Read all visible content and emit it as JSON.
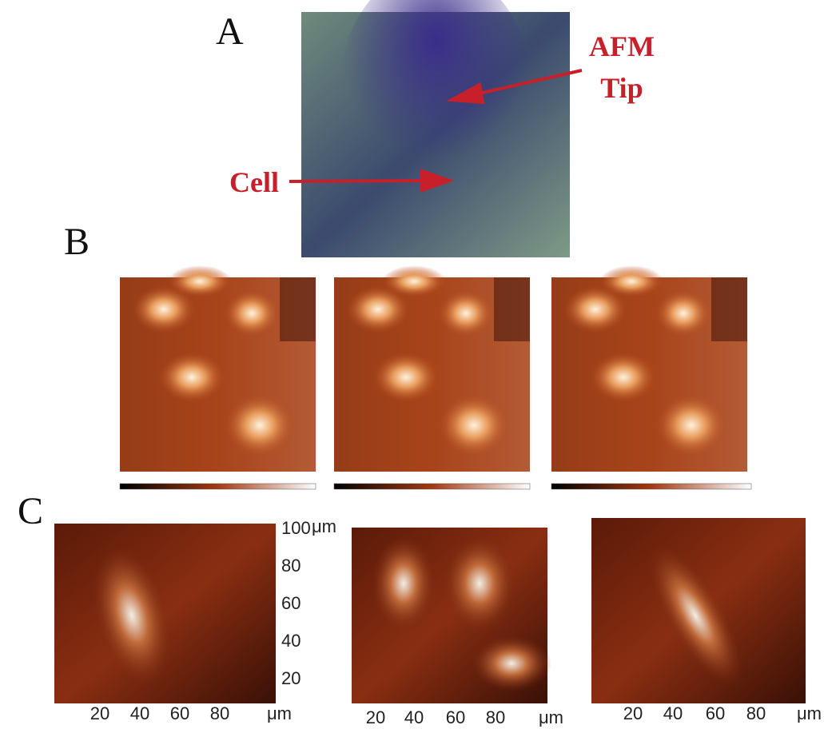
{
  "panels": [
    {
      "label": "A",
      "annotations": [
        "AFM",
        "Tip",
        "Cell"
      ]
    },
    {
      "label": "B"
    },
    {
      "label": "C",
      "plots": [
        {
          "yticks": [
            "100",
            "80",
            "60",
            "40",
            "20"
          ],
          "yunit": "μm",
          "xticks": [
            "20",
            "40",
            "60",
            "80"
          ],
          "xunit": "μm"
        },
        {
          "xticks": [
            "20",
            "40",
            "60",
            "80"
          ],
          "xunit": "μm"
        },
        {
          "xticks": [
            "20",
            "40",
            "60",
            "80"
          ],
          "xunit": "μm"
        }
      ]
    }
  ]
}
